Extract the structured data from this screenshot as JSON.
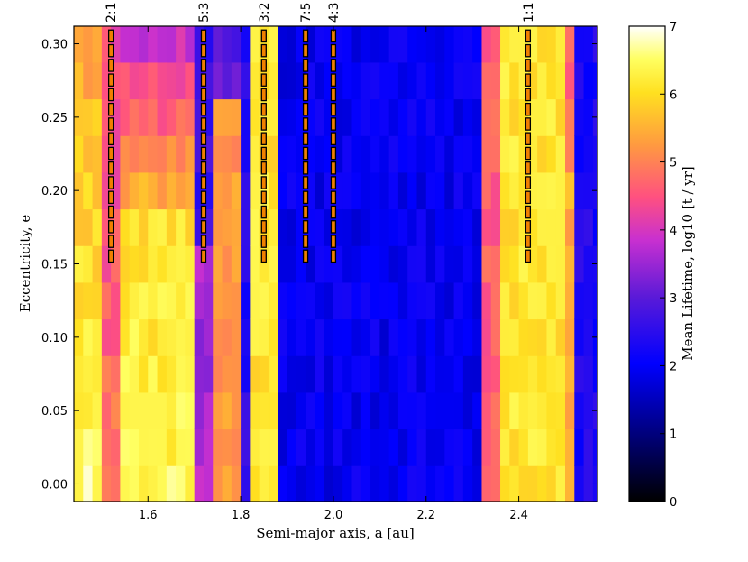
{
  "chart_data": {
    "type": "heatmap",
    "xlabel": "Semi-major axis, a [au]",
    "ylabel": "Eccentricity, e",
    "colorbar_label": "Mean Lifetime, log10 [t / yr]",
    "xlim": [
      1.44,
      2.57
    ],
    "ylim": [
      -0.012,
      0.312
    ],
    "x_ticks": [
      1.6,
      1.8,
      2.0,
      2.2,
      2.4
    ],
    "x_tick_labels": [
      "1.6",
      "1.8",
      "2.0",
      "2.2",
      "2.4"
    ],
    "y_ticks": [
      0.0,
      0.05,
      0.1,
      0.15,
      0.2,
      0.25,
      0.3
    ],
    "y_tick_labels": [
      "0.00",
      "0.05",
      "0.10",
      "0.15",
      "0.20",
      "0.25",
      "0.30"
    ],
    "colorbar_range": [
      0,
      7
    ],
    "colorbar_ticks": [
      "0",
      "1",
      "2",
      "3",
      "4",
      "5",
      "6",
      "7"
    ],
    "colormap": "gnuplot2",
    "grid": {
      "a_start": 1.44,
      "a_step": 0.02,
      "n_a": 57,
      "e_start": -0.0125,
      "e_step": 0.025,
      "n_e": 13
    },
    "resonances": [
      {
        "label": "2:1",
        "a": 1.52,
        "e_min": 0.15,
        "e_max": 0.31
      },
      {
        "label": "5:3",
        "a": 1.72,
        "e_min": 0.15,
        "e_max": 0.31
      },
      {
        "label": "3:2",
        "a": 1.85,
        "e_min": 0.15,
        "e_max": 0.31
      },
      {
        "label": "7:5",
        "a": 1.94,
        "e_min": 0.15,
        "e_max": 0.31
      },
      {
        "label": "4:3",
        "a": 2.0,
        "e_min": 0.15,
        "e_max": 0.31
      },
      {
        "label": "1:1",
        "a": 2.42,
        "e_min": 0.15,
        "e_max": 0.31
      }
    ],
    "resonance_marker_color": "#f08000"
  }
}
